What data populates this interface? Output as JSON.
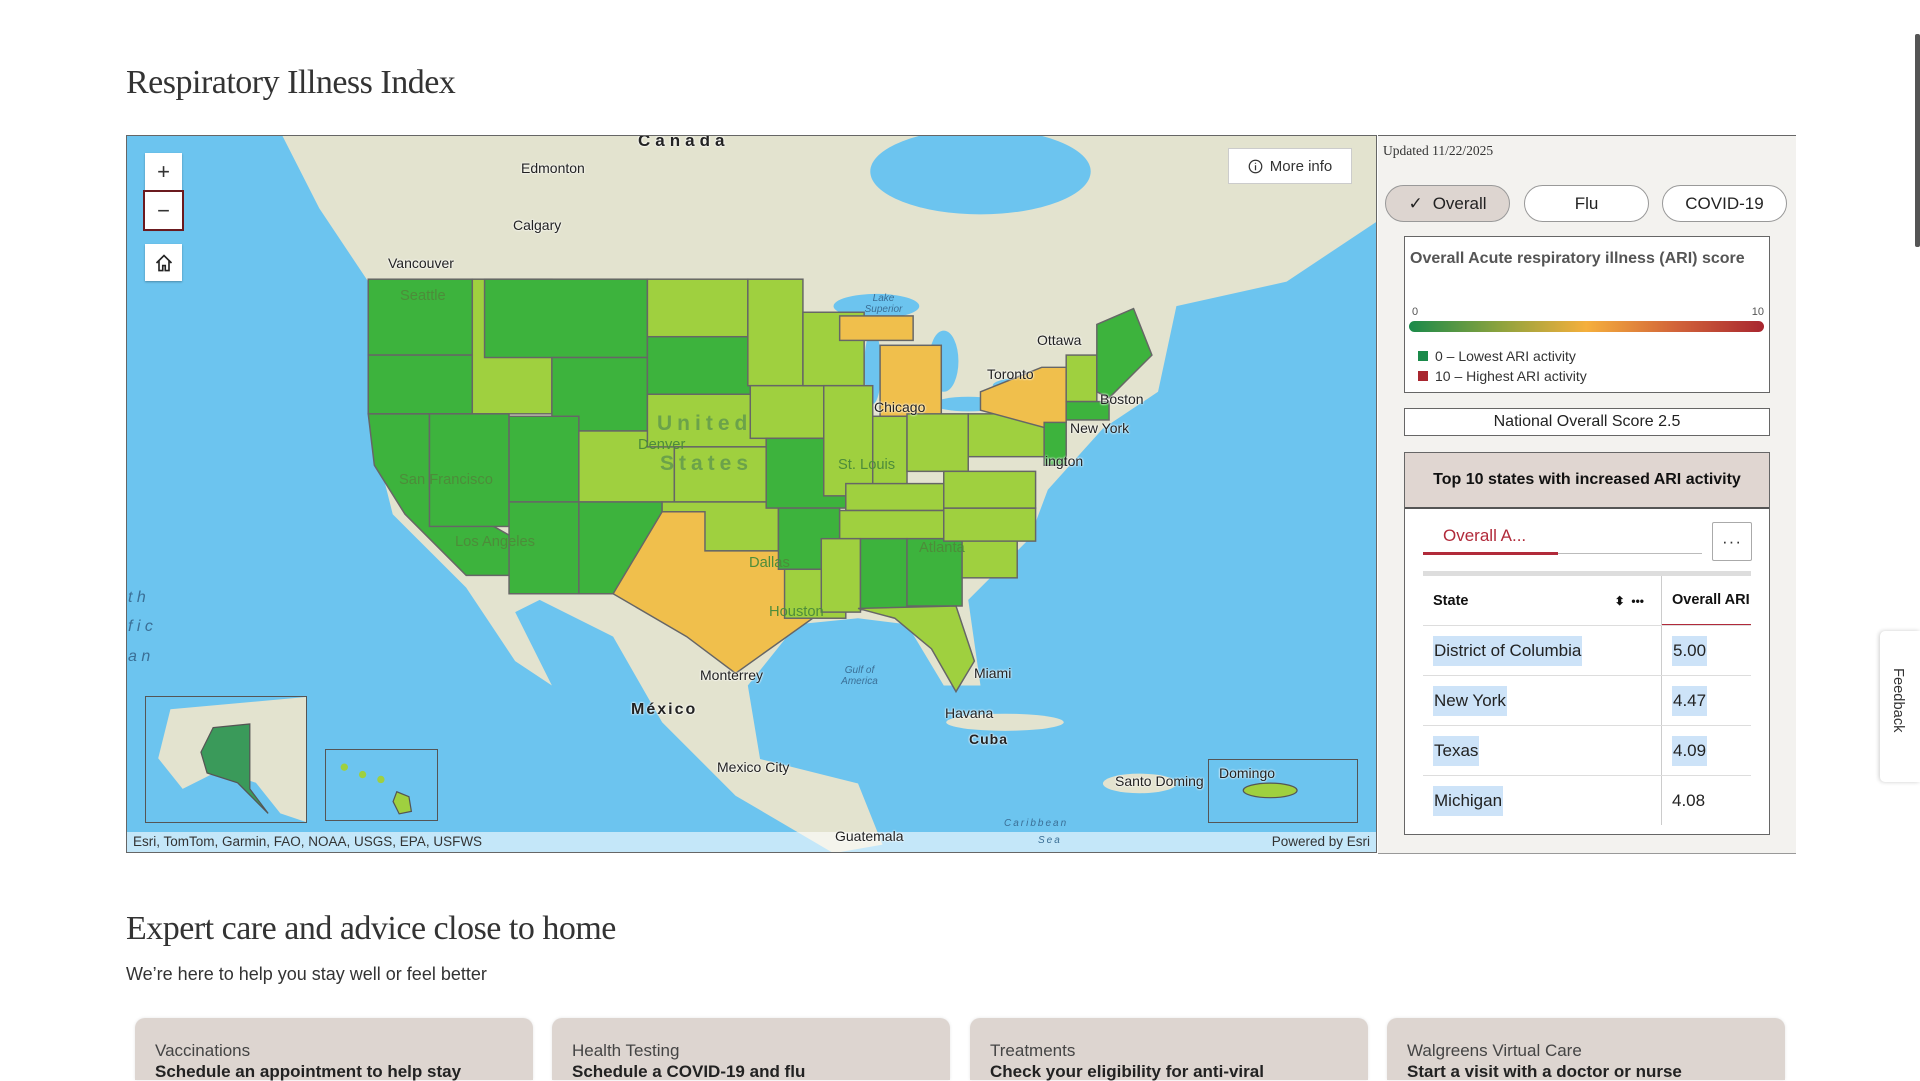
{
  "page": {
    "title": "Respiratory Illness Index"
  },
  "map": {
    "controls": {
      "zoom_in": "+",
      "zoom_out": "−",
      "home_icon": "home-icon"
    },
    "more_info": "More info",
    "attribution": "Esri, TomTom, Garmin, FAO, NOAA, USGS, EPA, USFWS",
    "powered_by": "Powered by Esri",
    "labels": {
      "canada": "Canada",
      "edmonton": "Edmonton",
      "calgary": "Calgary",
      "vancouver": "Vancouver",
      "seattle": "Seattle",
      "lake_superior": "Lake Superior",
      "ottawa": "Ottawa",
      "toronto": "Toronto",
      "boston": "Boston",
      "new_york": "New York",
      "washington": "ington",
      "chicago": "Chicago",
      "denver": "Denver",
      "united": "United",
      "states": "States",
      "san_francisco": "San Francisco",
      "los_angeles": "Los Angeles",
      "st_louis": "St. Louis",
      "atlanta": "Atlanta",
      "dallas": "Dallas",
      "houston": "Houston",
      "monterrey": "Monterrey",
      "gulf": "Gulf of America",
      "miami": "Miami",
      "havana": "Havana",
      "cuba": "Cuba",
      "mexico": "México",
      "mexico_city": "Mexico City",
      "santo_domingo": "Santo Doming",
      "domingo": "Domingo",
      "guatemala": "Guatemala",
      "caribbean": "Caribbean",
      "sea": "Sea",
      "pac1": "t h",
      "pac2": "f i c",
      "pac3": "a n"
    },
    "colors": {
      "lowest": "#3db33d",
      "low": "#9fd03f",
      "elevated": "#f0bf4c",
      "water": "#6cc4ef",
      "land": "#e3e3cf"
    }
  },
  "panel": {
    "updated": "Updated 11/22/2025",
    "filters": [
      {
        "label": "Overall",
        "selected": true
      },
      {
        "label": "Flu",
        "selected": false
      },
      {
        "label": "COVID-19",
        "selected": false
      }
    ],
    "legend": {
      "title": "Overall Acute respiratory illness (ARI) score",
      "min": "0",
      "max": "10",
      "items": [
        {
          "label": "0 – Lowest ARI activity",
          "color": "#1a8a4a"
        },
        {
          "label": "10 – Highest ARI activity",
          "color": "#a8262f"
        }
      ]
    },
    "national_score": "National Overall Score 2.5",
    "top10": {
      "title": "Top 10 states with increased ARI activity",
      "tab": "Overall A...",
      "menu": "···",
      "columns": [
        "State",
        "Overall ARI"
      ],
      "rows": [
        {
          "state": "District of Columbia",
          "value": "5.00"
        },
        {
          "state": "New York",
          "value": "4.47"
        },
        {
          "state": "Texas",
          "value": "4.09"
        },
        {
          "state": "Michigan",
          "value": "4.08"
        }
      ]
    }
  },
  "feedback": "Feedback",
  "expert": {
    "title": "Expert care and advice close to home",
    "subtitle": "We’re here to help you stay well or feel better",
    "cards": [
      {
        "label": "Vaccinations",
        "text": "Schedule an appointment to help stay"
      },
      {
        "label": "Health Testing",
        "text": "Schedule a COVID-19 and flu"
      },
      {
        "label": "Treatments",
        "text": "Check your eligibility for anti-viral"
      },
      {
        "label": "Walgreens Virtual Care",
        "text": "Start a visit with a doctor or nurse"
      }
    ]
  }
}
